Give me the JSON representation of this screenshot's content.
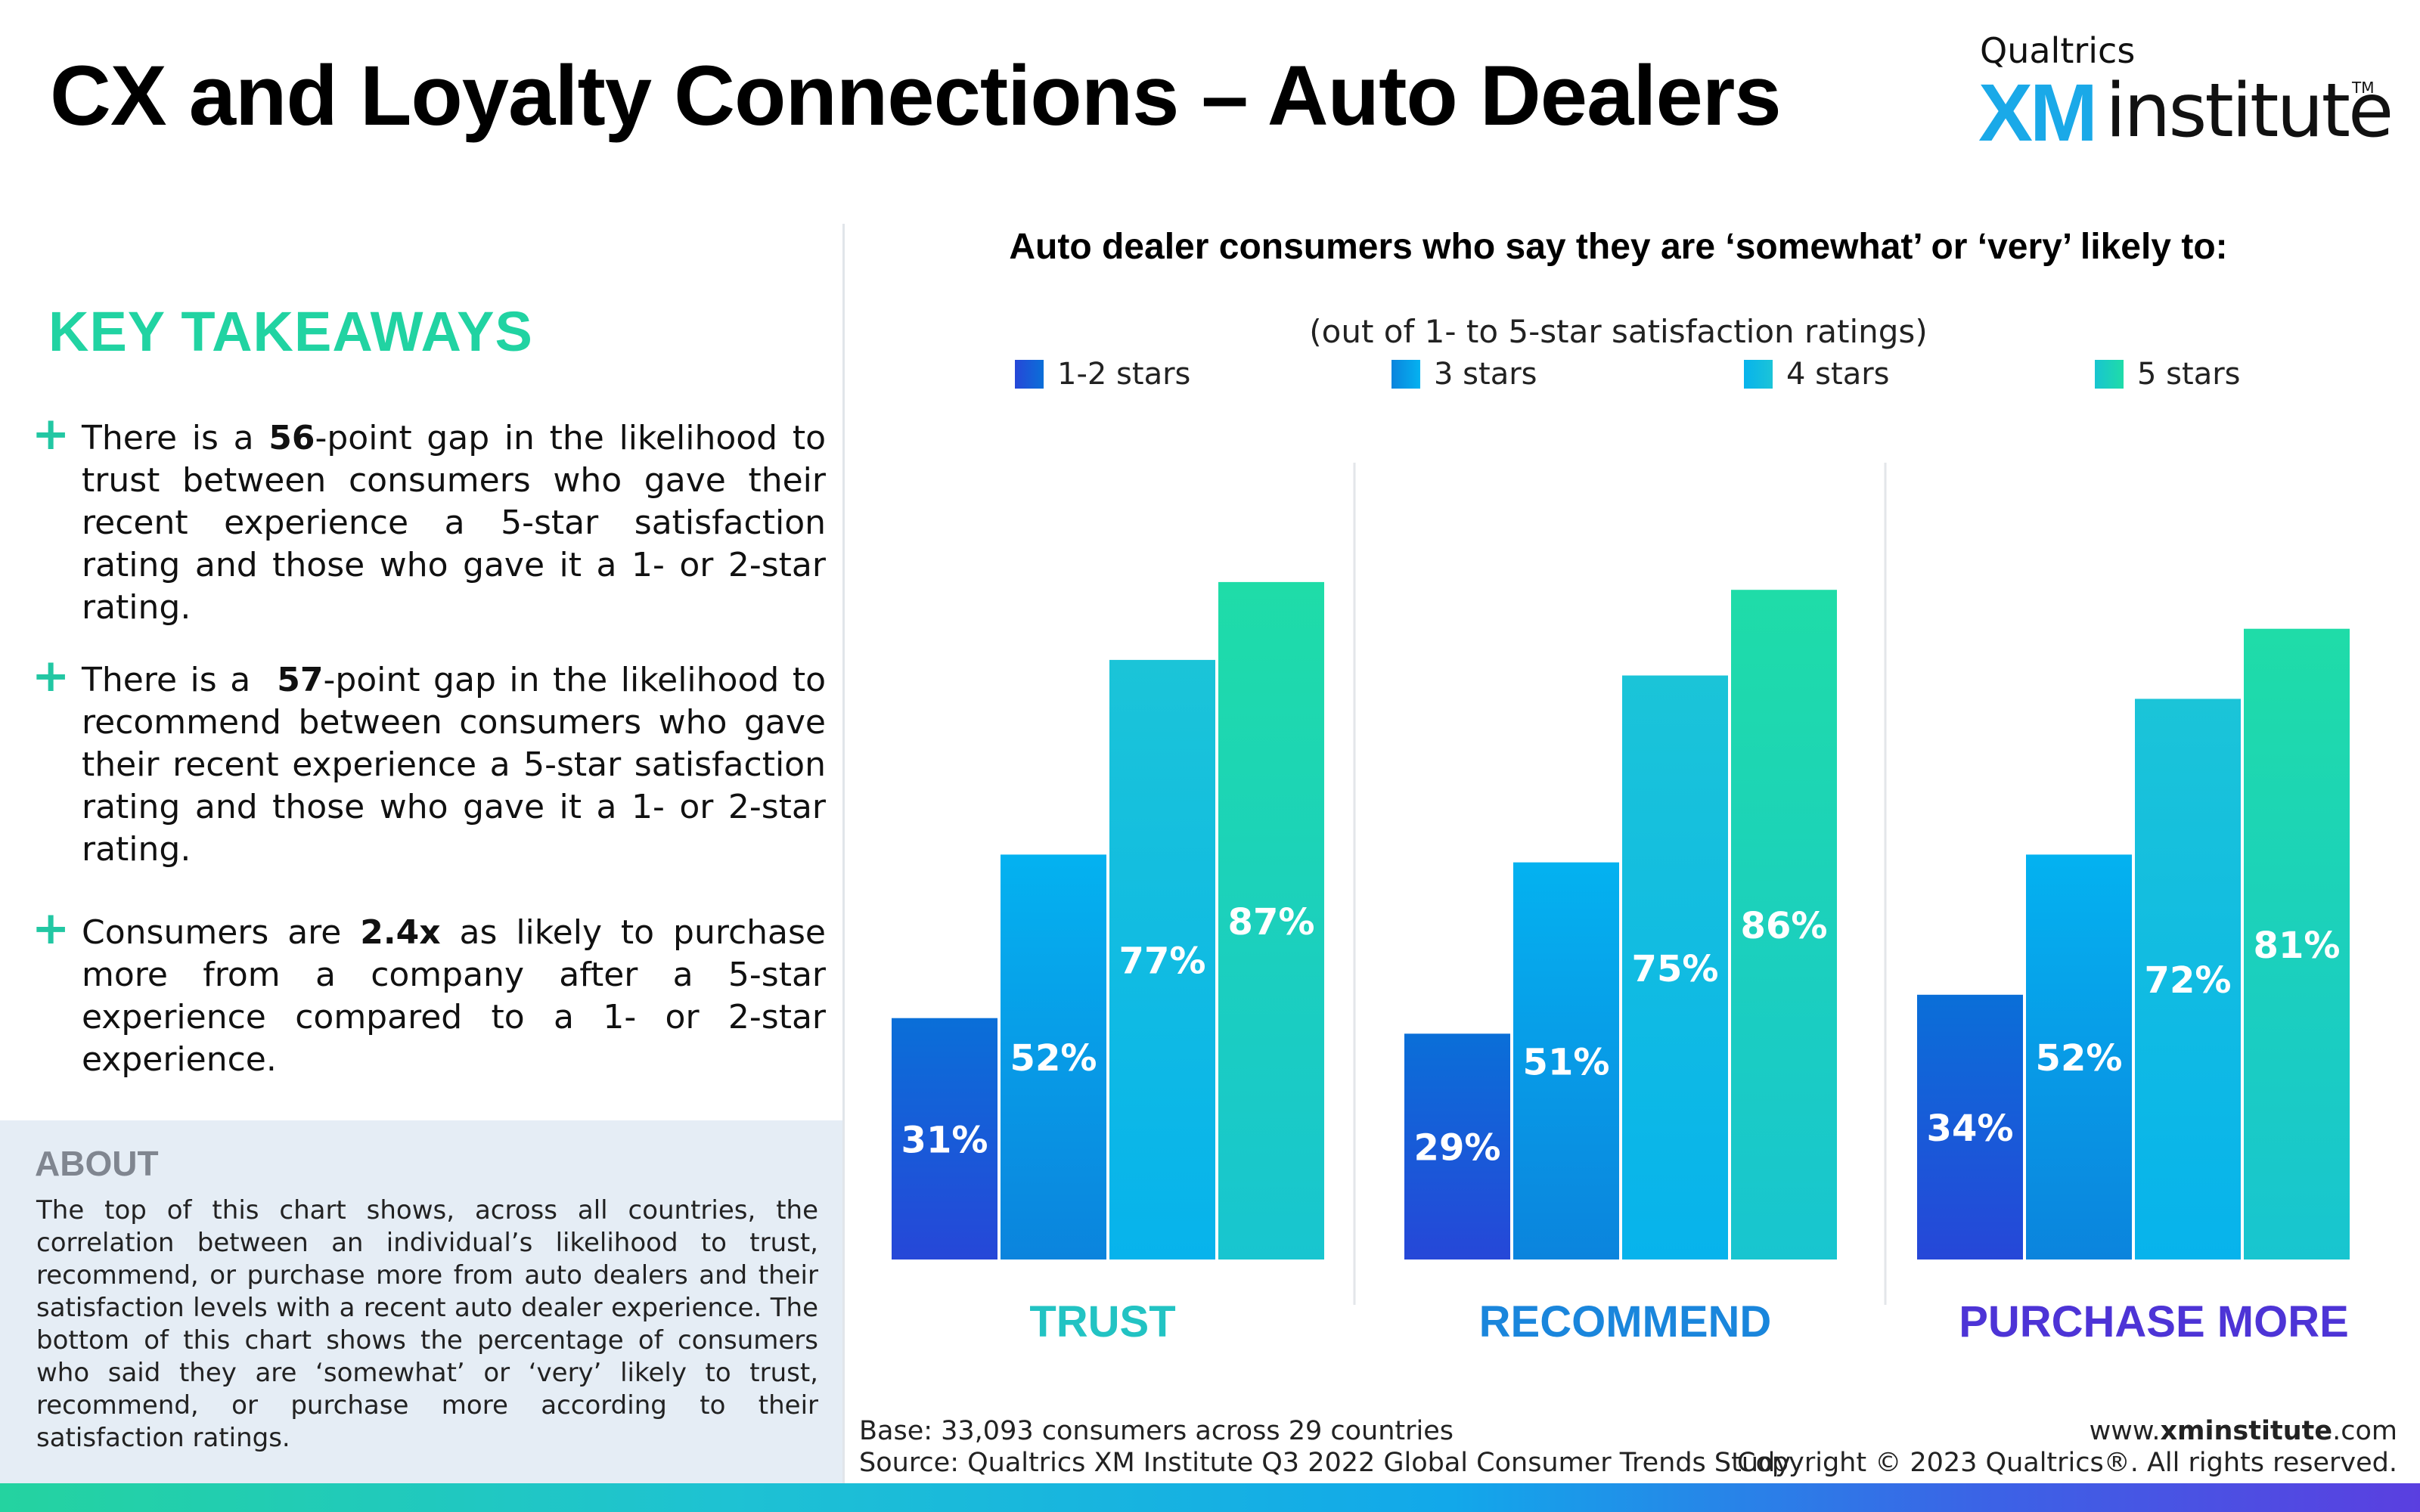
{
  "title": "CX and Loyalty Connections – Auto Dealers",
  "logo": {
    "top": "Qualtrics",
    "xm": "XM",
    "institute": "institute",
    "tm": "TM"
  },
  "key_takeaways": {
    "heading": "KEY TAKEAWAYS",
    "items": [
      {
        "pre": "There is a ",
        "bold": "56",
        "post": "-point gap in the likelihood to trust between consumers who gave their recent experience a 5-star satisfaction rating and those who gave it a 1- or 2-star rating."
      },
      {
        "pre": "There is a  ",
        "bold": "57",
        "post": "-point gap in the likelihood to recommend between consumers who gave their recent experience a 5-star satisfaction rating and those who gave it a 1- or 2-star rating."
      },
      {
        "pre": "Consumers are ",
        "bold": "2.4x",
        "post": " as likely to purchase more from a company after a 5-star experience compared to a 1- or 2-star experience."
      }
    ]
  },
  "about": {
    "heading": "ABOUT",
    "text": "The top of this chart shows, across all countries, the correlation between an individual’s likelihood to trust, recommend, or purchase more from auto dealers and their satisfaction levels with a recent auto dealer experience. The bottom of this chart shows the percentage of consumers who said they are ‘somewhat’ or ‘very’ likely to trust, recommend, or purchase more according to their satisfaction ratings."
  },
  "chart_data": {
    "type": "bar",
    "title": "Auto dealer consumers who say they are ‘somewhat’ or ‘very’ likely to:",
    "subtitle": "(out of 1- to 5-star satisfaction ratings)",
    "categories": [
      "TRUST",
      "RECOMMEND",
      "PURCHASE MORE"
    ],
    "category_colors": [
      "#22c3c3",
      "#1a86dc",
      "#4d34d6"
    ],
    "series": [
      {
        "name": "1-2 stars",
        "values": [
          31,
          29,
          34
        ],
        "color_top": "#0a6fd8",
        "color_bottom": "#2647d8"
      },
      {
        "name": "3 stars",
        "values": [
          52,
          51,
          52
        ],
        "color_top": "#04b2f0",
        "color_bottom": "#0b84dd"
      },
      {
        "name": "4 stars",
        "values": [
          77,
          75,
          72
        ],
        "color_top": "#1bc4d8",
        "color_bottom": "#07b3ec"
      },
      {
        "name": "5 stars",
        "values": [
          87,
          86,
          81
        ],
        "color_top": "#1fdca8",
        "color_bottom": "#18c5d0"
      }
    ],
    "value_suffix": "%",
    "ylim": [
      0,
      100
    ],
    "grid": false,
    "legend_position": "top"
  },
  "footer": {
    "base": "Base: 33,093 consumers across 29 countries",
    "source": "Source: Qualtrics XM Institute Q3 2022 Global Consumer Trends Study",
    "url_prefix": "www.",
    "url_bold": "xminstitute",
    "url_suffix": ".com",
    "copyright": "Copyright © 2023 Qualtrics®. All rights reserved."
  }
}
